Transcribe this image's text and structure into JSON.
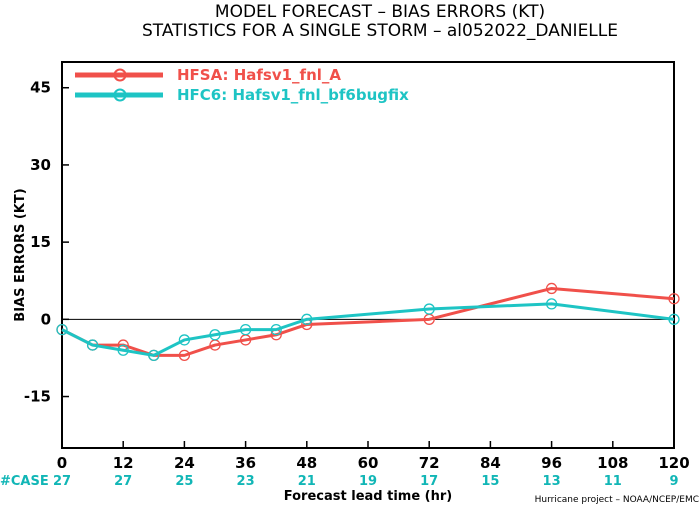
{
  "title_line1": "MODEL FORECAST – BIAS ERRORS (KT)",
  "title_line2": "STATISTICS FOR A SINGLE STORM – al052022_DANIELLE",
  "case_label": "#CASE",
  "case_counts": [
    "27",
    "27",
    "25",
    "23",
    "21",
    "19",
    "17",
    "15",
    "13",
    "11",
    "9"
  ],
  "credit": "Hurricane project – NOAA/NCEP/EMC",
  "colors": {
    "hfsa": "#f0504a",
    "hfc6": "#1ec4c4",
    "case": "#11b6b6"
  },
  "chart_data": {
    "type": "line",
    "xlabel": "Forecast lead time (hr)",
    "ylabel": "BIAS ERRORS (KT)",
    "xlim": [
      0,
      120
    ],
    "ylim": [
      -25,
      50
    ],
    "xticks": [
      0,
      12,
      24,
      36,
      48,
      60,
      72,
      84,
      96,
      108,
      120
    ],
    "yticks": [
      45,
      30,
      15,
      0,
      -15
    ],
    "grid": false,
    "zero_line": true,
    "legend_position": "top-left",
    "series": [
      {
        "name": "HFSA: Hafsv1_fnl_A",
        "color": "#f0504a",
        "x": [
          0,
          6,
          12,
          18,
          24,
          30,
          36,
          42,
          48,
          72,
          96,
          120
        ],
        "y": [
          -2,
          -5,
          -5,
          -7,
          -7,
          -5,
          -4,
          -3,
          -1,
          0,
          6,
          4
        ]
      },
      {
        "name": "HFC6: Hafsv1_fnl_bf6bugfix",
        "color": "#1ec4c4",
        "x": [
          0,
          6,
          12,
          18,
          24,
          30,
          36,
          42,
          48,
          72,
          96,
          120
        ],
        "y": [
          -2,
          -5,
          -6,
          -7,
          -4,
          -3,
          -2,
          -2,
          0,
          2,
          3,
          0
        ]
      }
    ]
  }
}
